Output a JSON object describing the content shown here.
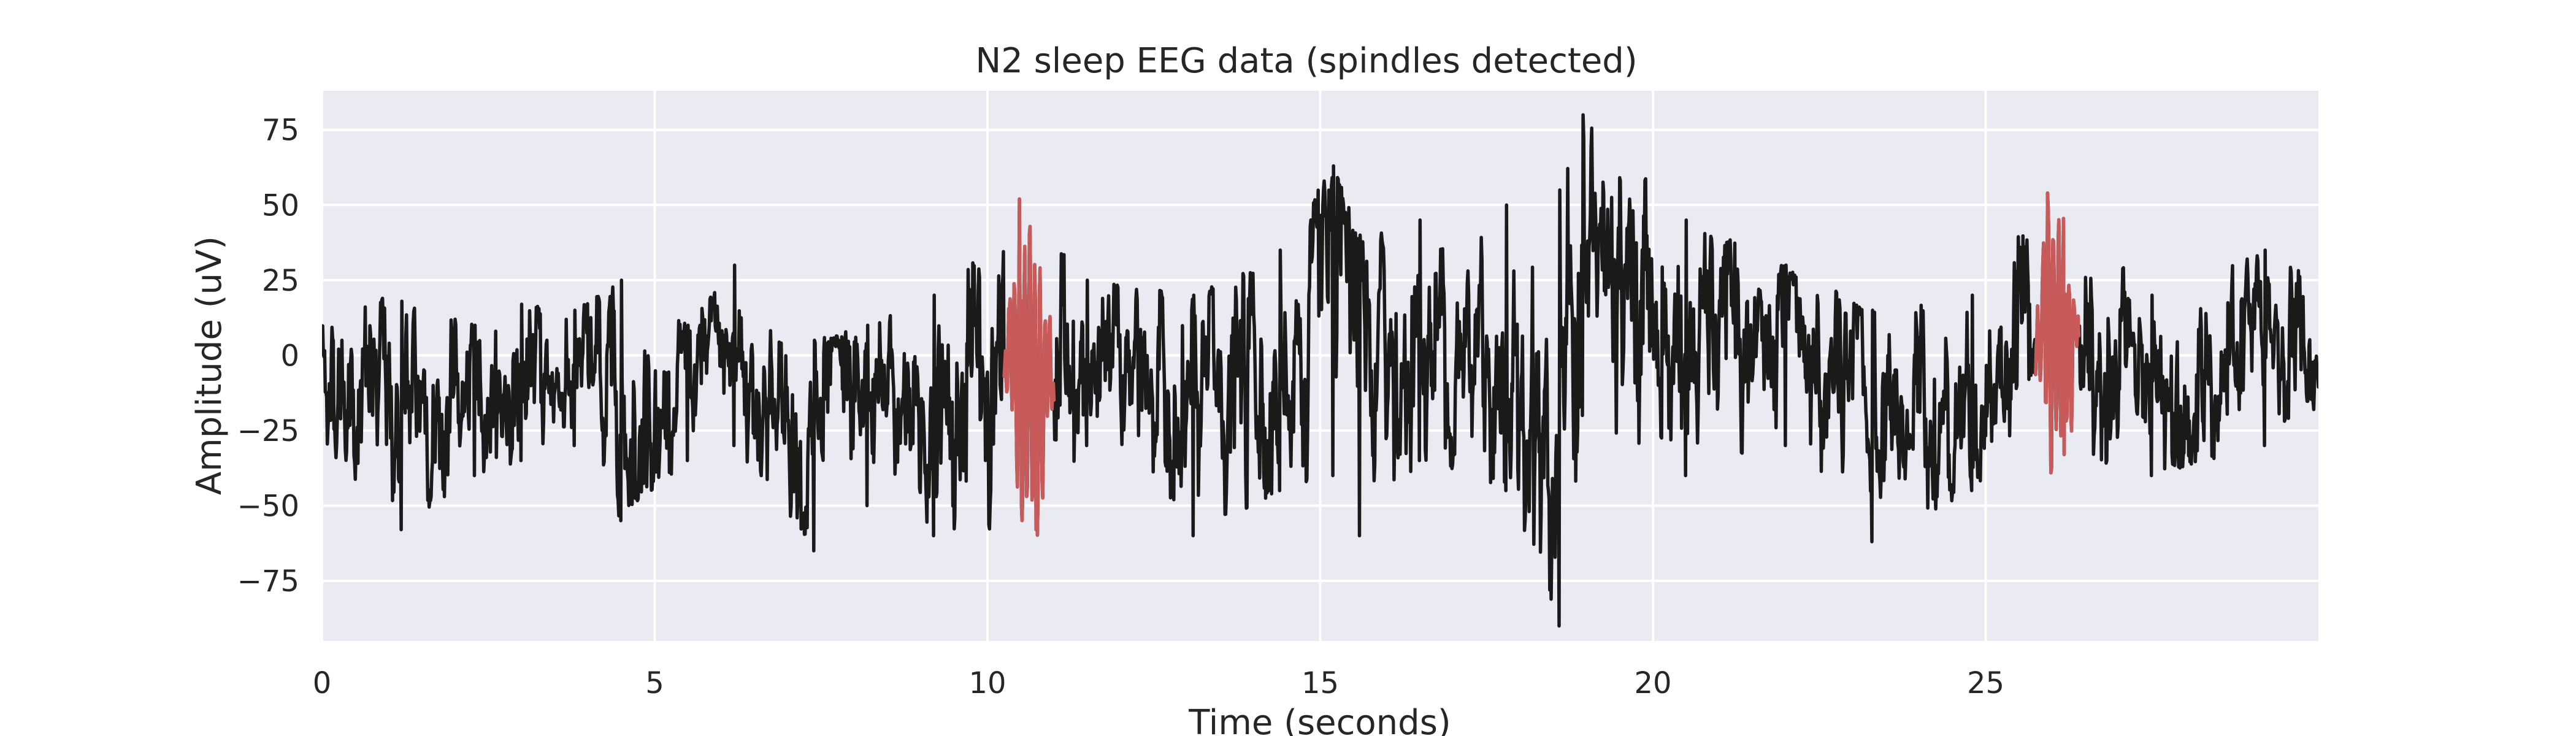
{
  "chart_data": {
    "type": "line",
    "title": "N2 sleep EEG data (spindles detected)",
    "xlabel": "Time (seconds)",
    "ylabel": "Amplitude (uV)",
    "xlim": [
      0,
      30
    ],
    "ylim": [
      -95,
      88
    ],
    "x_ticks": [
      0,
      5,
      10,
      15,
      20,
      25
    ],
    "x_tick_labels": [
      "0",
      "5",
      "10",
      "15",
      "20",
      "25"
    ],
    "y_ticks": [
      75,
      50,
      25,
      0,
      -25,
      -50,
      -75
    ],
    "y_tick_labels": [
      "75",
      "50",
      "25",
      "0",
      "−25",
      "−50",
      "−75"
    ],
    "grid": true,
    "background_color": "#eaeaf2",
    "colors": {
      "signal": "#1a1a1a",
      "spindle": "#c85a5a"
    },
    "sampling_rate_hz": 100,
    "spindles": [
      {
        "start": 10.25,
        "end": 11.0,
        "peak_positive": 52,
        "peak_negative": -58
      },
      {
        "start": 25.75,
        "end": 26.4,
        "peak_positive": 54,
        "peak_negative": -33
      }
    ],
    "signal_envelope": [
      {
        "t": 0.0,
        "low": -30,
        "high": 22
      },
      {
        "t": 1.2,
        "low": -58,
        "high": 18
      },
      {
        "t": 2.3,
        "low": -40,
        "high": 10
      },
      {
        "t": 3.0,
        "low": -35,
        "high": 17
      },
      {
        "t": 3.8,
        "low": -30,
        "high": 15
      },
      {
        "t": 4.5,
        "low": -55,
        "high": 25
      },
      {
        "t": 5.5,
        "low": -35,
        "high": 10
      },
      {
        "t": 6.2,
        "low": -30,
        "high": 30
      },
      {
        "t": 7.4,
        "low": -65,
        "high": 5
      },
      {
        "t": 8.2,
        "low": -50,
        "high": 10
      },
      {
        "t": 9.2,
        "low": -60,
        "high": 20
      },
      {
        "t": 10.5,
        "low": -58,
        "high": 52
      },
      {
        "t": 11.5,
        "low": -30,
        "high": 25
      },
      {
        "t": 13.1,
        "low": -60,
        "high": 20
      },
      {
        "t": 14.4,
        "low": -45,
        "high": 35
      },
      {
        "t": 15.2,
        "low": -40,
        "high": 63
      },
      {
        "t": 15.6,
        "low": -60,
        "high": 40
      },
      {
        "t": 16.5,
        "low": -35,
        "high": 45
      },
      {
        "t": 17.8,
        "low": -45,
        "high": 50
      },
      {
        "t": 18.6,
        "low": -90,
        "high": 55
      },
      {
        "t": 18.95,
        "low": -20,
        "high": 80
      },
      {
        "t": 20.5,
        "low": -40,
        "high": 45
      },
      {
        "t": 22.0,
        "low": -30,
        "high": 30
      },
      {
        "t": 23.3,
        "low": -62,
        "high": 15
      },
      {
        "t": 24.8,
        "low": -45,
        "high": 20
      },
      {
        "t": 26.0,
        "low": -33,
        "high": 54
      },
      {
        "t": 27.5,
        "low": -40,
        "high": 20
      },
      {
        "t": 29.2,
        "low": -30,
        "high": 35
      },
      {
        "t": 30.0,
        "low": -25,
        "high": 25
      }
    ]
  }
}
